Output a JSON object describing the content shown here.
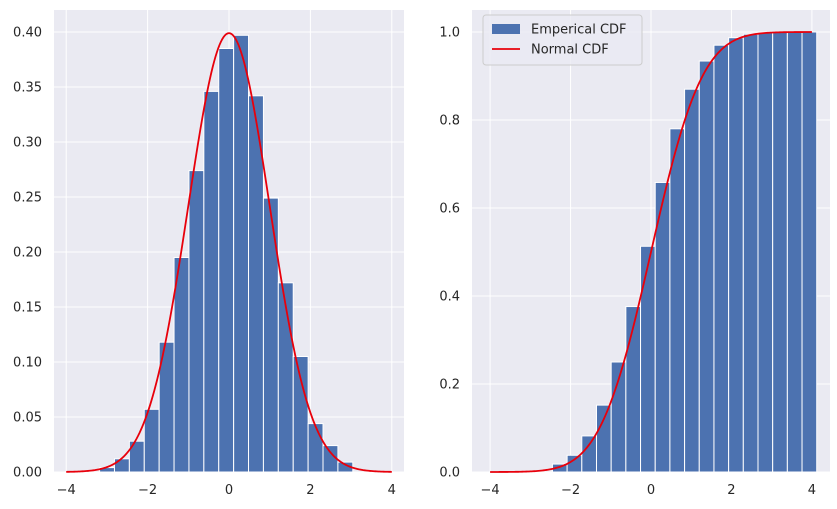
{
  "chart_data": [
    {
      "type": "bar",
      "title": "",
      "xlabel": "",
      "ylabel": "",
      "xlim": [
        -4.3,
        4.3
      ],
      "ylim": [
        0,
        0.42
      ],
      "xticks": [
        -4,
        -2,
        0,
        2,
        4
      ],
      "xtick_labels": [
        "−4",
        "−2",
        "0",
        "2",
        "4"
      ],
      "yticks": [
        0.0,
        0.05,
        0.1,
        0.15,
        0.2,
        0.25,
        0.3,
        0.35,
        0.4
      ],
      "ytick_labels": [
        "0.00",
        "0.05",
        "0.10",
        "0.15",
        "0.20",
        "0.25",
        "0.30",
        "0.35",
        "0.40"
      ],
      "grid": true,
      "histogram": {
        "bin_start": -3.18,
        "bin_width": 0.366,
        "heights": [
          0.004,
          0.012,
          0.028,
          0.057,
          0.118,
          0.195,
          0.274,
          0.346,
          0.385,
          0.397,
          0.342,
          0.249,
          0.172,
          0.105,
          0.044,
          0.024,
          0.009
        ],
        "color": "#4c72b0"
      },
      "curve": {
        "function": "normal_pdf",
        "x_range": [
          -4,
          4
        ],
        "color": "#e8000b"
      }
    },
    {
      "type": "bar",
      "title": "",
      "xlabel": "",
      "ylabel": "",
      "xlim": [
        -4.45,
        4.45
      ],
      "ylim": [
        0,
        1.05
      ],
      "xticks": [
        -4,
        -2,
        0,
        2,
        4
      ],
      "xtick_labels": [
        "−4",
        "−2",
        "0",
        "2",
        "4"
      ],
      "yticks": [
        0.0,
        0.2,
        0.4,
        0.6,
        0.8,
        1.0
      ],
      "ytick_labels": [
        "0.0",
        "0.2",
        "0.4",
        "0.6",
        "0.8",
        "1.0"
      ],
      "grid": true,
      "legend": {
        "placement": "upper-left",
        "entries": [
          {
            "label": "Emperical CDF",
            "kind": "patch",
            "color": "#4c72b0"
          },
          {
            "label": "Normal CDF",
            "kind": "line",
            "color": "#e8000b"
          }
        ]
      },
      "histogram": {
        "bin_start": -2.45,
        "bin_width": 0.365,
        "heights": [
          0.018,
          0.038,
          0.082,
          0.152,
          0.25,
          0.376,
          0.513,
          0.658,
          0.78,
          0.87,
          0.934,
          0.97,
          0.987,
          0.995,
          0.998,
          0.999,
          1.0,
          1.0
        ],
        "color": "#4c72b0"
      },
      "curve": {
        "function": "normal_cdf",
        "x_range": [
          -4,
          4
        ],
        "color": "#e8000b"
      }
    }
  ]
}
